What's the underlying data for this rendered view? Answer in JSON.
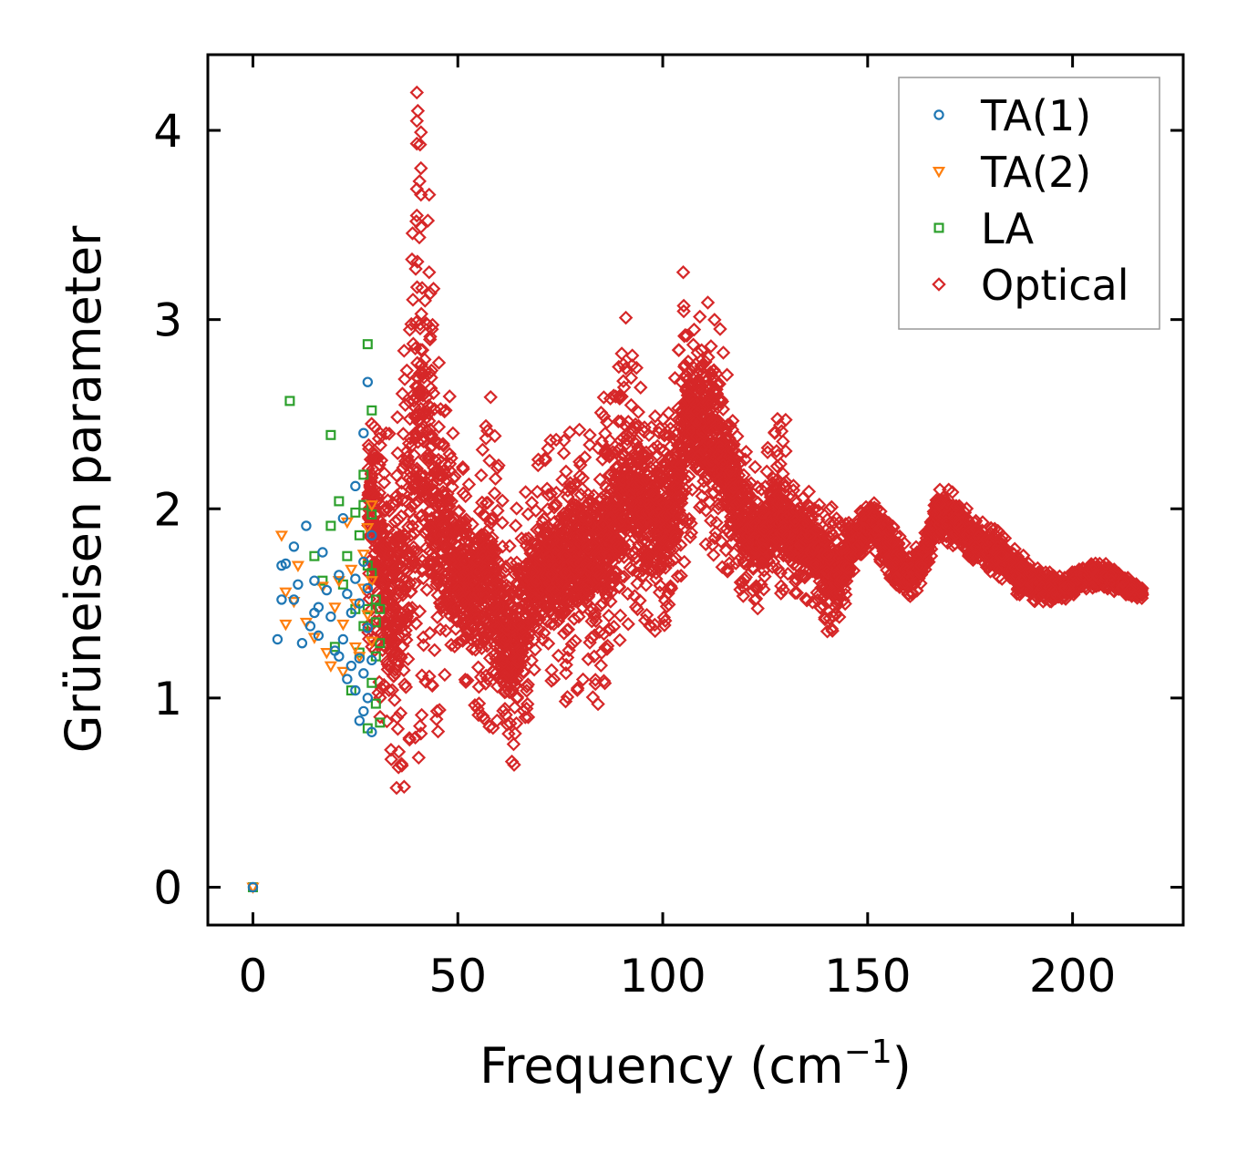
{
  "chart_data": {
    "type": "scatter",
    "title": "",
    "xlabel": "Frequency (cm",
    "xlabel_sup": "−1",
    "xlabel_close": ")",
    "ylabel": "Grüneisen parameter",
    "xlim": [
      -11,
      227
    ],
    "ylim": [
      -0.2,
      4.4
    ],
    "xticks": [
      0,
      50,
      100,
      150,
      200
    ],
    "yticks": [
      0,
      1,
      2,
      3,
      4
    ],
    "grid": false,
    "legend_position": "top-right",
    "colors": {
      "TA(1)": "#1f77b4",
      "TA(2)": "#ff7f0e",
      "LA": "#2ca02c",
      "Optical": "#d62728"
    },
    "series": [
      {
        "name": "TA(1)",
        "marker": "circle",
        "points": [
          [
            0,
            0
          ],
          [
            6,
            1.31
          ],
          [
            7,
            1.7
          ],
          [
            7,
            1.52
          ],
          [
            8,
            1.71
          ],
          [
            10,
            1.8
          ],
          [
            10,
            1.52
          ],
          [
            11,
            1.6
          ],
          [
            12,
            1.29
          ],
          [
            13,
            1.91
          ],
          [
            14,
            1.38
          ],
          [
            15,
            1.45
          ],
          [
            15,
            1.62
          ],
          [
            16,
            1.48
          ],
          [
            16,
            1.33
          ],
          [
            17,
            1.77
          ],
          [
            18,
            1.57
          ],
          [
            19,
            1.43
          ],
          [
            20,
            1.25
          ],
          [
            21,
            1.22
          ],
          [
            21,
            1.65
          ],
          [
            22,
            1.31
          ],
          [
            22,
            1.95
          ],
          [
            23,
            1.1
          ],
          [
            23,
            1.55
          ],
          [
            24,
            1.17
          ],
          [
            24,
            1.45
          ],
          [
            25,
            1.04
          ],
          [
            25,
            1.63
          ],
          [
            25,
            2.12
          ],
          [
            26,
            0.88
          ],
          [
            26,
            1.21
          ],
          [
            26,
            1.5
          ],
          [
            27,
            0.93
          ],
          [
            27,
            1.13
          ],
          [
            27,
            1.72
          ],
          [
            27,
            2.4
          ],
          [
            28,
            1.0
          ],
          [
            28,
            1.37
          ],
          [
            28,
            1.58
          ],
          [
            28,
            2.67
          ],
          [
            29,
            0.82
          ],
          [
            29,
            1.2
          ],
          [
            29,
            1.86
          ]
        ]
      },
      {
        "name": "TA(2)",
        "marker": "triangle-down",
        "points": [
          [
            0,
            0
          ],
          [
            7,
            1.86
          ],
          [
            8,
            1.39
          ],
          [
            8,
            1.56
          ],
          [
            10,
            1.51
          ],
          [
            11,
            1.7
          ],
          [
            13,
            1.4
          ],
          [
            15,
            1.32
          ],
          [
            17,
            1.59
          ],
          [
            18,
            1.24
          ],
          [
            19,
            1.17
          ],
          [
            20,
            1.48
          ],
          [
            21,
            1.62
          ],
          [
            22,
            1.39
          ],
          [
            22,
            1.14
          ],
          [
            23,
            1.93
          ],
          [
            24,
            1.68
          ],
          [
            25,
            1.27
          ],
          [
            25,
            1.5
          ],
          [
            26,
            1.22
          ],
          [
            27,
            1.58
          ],
          [
            27,
            1.76
          ],
          [
            28,
            1.44
          ],
          [
            28,
            1.9
          ],
          [
            29,
            1.3
          ],
          [
            29,
            1.62
          ],
          [
            29,
            2.02
          ]
        ]
      },
      {
        "name": "LA",
        "marker": "square",
        "points": [
          [
            0,
            0
          ],
          [
            9,
            2.57
          ],
          [
            15,
            1.75
          ],
          [
            17,
            1.62
          ],
          [
            19,
            1.91
          ],
          [
            19,
            2.39
          ],
          [
            20,
            1.27
          ],
          [
            21,
            2.04
          ],
          [
            22,
            1.6
          ],
          [
            23,
            1.75
          ],
          [
            24,
            1.04
          ],
          [
            25,
            1.47
          ],
          [
            25,
            1.98
          ],
          [
            26,
            1.24
          ],
          [
            26,
            1.86
          ],
          [
            27,
            2.02
          ],
          [
            27,
            2.18
          ],
          [
            27,
            1.38
          ],
          [
            28,
            2.87
          ],
          [
            28,
            1.47
          ],
          [
            28,
            0.84
          ],
          [
            28,
            1.7
          ],
          [
            29,
            2.52
          ],
          [
            29,
            1.08
          ],
          [
            29,
            1.66
          ],
          [
            29,
            1.97
          ],
          [
            30,
            0.97
          ],
          [
            30,
            1.22
          ],
          [
            30,
            1.4
          ],
          [
            30,
            1.52
          ],
          [
            31,
            1.47
          ],
          [
            31,
            0.87
          ],
          [
            31,
            1.29
          ]
        ]
      },
      {
        "name": "Optical",
        "marker": "diamond",
        "points": []
      }
    ]
  },
  "optical_envelope": [
    [
      28,
      1.25,
      2.9
    ],
    [
      32,
      0.75,
      2.45
    ],
    [
      35,
      0.45,
      2.5
    ],
    [
      38,
      0.55,
      3.1
    ],
    [
      40,
      0.5,
      4.2
    ],
    [
      42,
      0.65,
      3.7
    ],
    [
      44,
      0.75,
      3.25
    ],
    [
      46,
      0.85,
      2.95
    ],
    [
      48,
      0.95,
      2.6
    ],
    [
      50,
      1.0,
      2.35
    ],
    [
      54,
      0.95,
      2.15
    ],
    [
      58,
      0.75,
      2.6
    ],
    [
      61,
      0.65,
      2.05
    ],
    [
      64,
      0.6,
      2.05
    ],
    [
      68,
      0.95,
      2.2
    ],
    [
      72,
      1.05,
      2.35
    ],
    [
      76,
      0.95,
      2.45
    ],
    [
      80,
      1.05,
      2.45
    ],
    [
      84,
      0.95,
      2.55
    ],
    [
      88,
      1.2,
      2.65
    ],
    [
      92,
      1.35,
      3.0
    ],
    [
      96,
      1.35,
      2.6
    ],
    [
      100,
      1.35,
      2.55
    ],
    [
      103,
      1.45,
      2.7
    ],
    [
      106,
      1.75,
      3.25
    ],
    [
      108,
      1.9,
      3.05
    ],
    [
      112,
      1.75,
      3.05
    ],
    [
      116,
      1.65,
      2.8
    ],
    [
      120,
      1.5,
      2.35
    ],
    [
      124,
      1.45,
      2.2
    ],
    [
      128,
      1.5,
      2.5
    ],
    [
      132,
      1.55,
      2.15
    ],
    [
      136,
      1.5,
      2.1
    ],
    [
      140,
      1.35,
      2.05
    ],
    [
      143,
      1.35,
      1.95
    ],
    [
      147,
      1.7,
      1.95
    ],
    [
      151,
      1.8,
      2.07
    ],
    [
      155,
      1.65,
      1.95
    ],
    [
      159,
      1.5,
      1.82
    ],
    [
      163,
      1.58,
      1.8
    ],
    [
      167,
      1.85,
      2.1
    ],
    [
      171,
      1.8,
      2.12
    ],
    [
      176,
      1.72,
      1.95
    ],
    [
      181,
      1.65,
      1.9
    ],
    [
      186,
      1.55,
      1.8
    ],
    [
      192,
      1.5,
      1.68
    ],
    [
      198,
      1.52,
      1.64
    ],
    [
      204,
      1.58,
      1.72
    ],
    [
      208,
      1.58,
      1.72
    ],
    [
      212,
      1.55,
      1.66
    ],
    [
      217,
      1.52,
      1.58
    ]
  ]
}
